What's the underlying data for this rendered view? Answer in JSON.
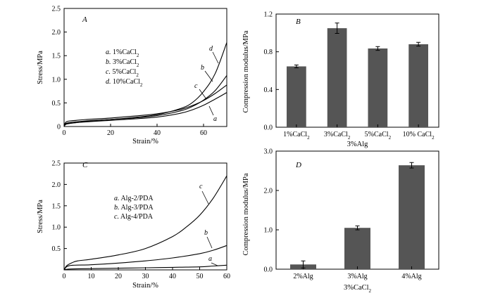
{
  "chart_data": [
    {
      "panel": "A",
      "type": "line",
      "xlabel": "Strain/%",
      "ylabel": "Stress/MPa",
      "xlim": [
        0,
        70
      ],
      "ylim": [
        0,
        2.5
      ],
      "xticks": [
        0,
        20,
        40,
        60
      ],
      "yticks": [
        0,
        0.5,
        1.0,
        1.5,
        2.0,
        2.5
      ],
      "ytick_labels": [
        "0",
        "0.5",
        "1.0",
        "1.5",
        "2.0",
        "2.5"
      ],
      "legend": [
        {
          "letter": "a.",
          "text": "1%CaCl",
          "sub": "2"
        },
        {
          "letter": "b.",
          "text": "3%CaCl",
          "sub": "2"
        },
        {
          "letter": "c.",
          "text": "5%CaCl",
          "sub": "2"
        },
        {
          "letter": "d.",
          "text": "10%CaCl",
          "sub": "2"
        }
      ],
      "series": [
        {
          "letter": "a",
          "x": [
            0,
            1,
            5,
            10,
            20,
            30,
            40,
            50,
            55,
            60,
            65,
            70
          ],
          "y": [
            0,
            0.06,
            0.08,
            0.1,
            0.13,
            0.16,
            0.2,
            0.28,
            0.35,
            0.45,
            0.58,
            0.72
          ]
        },
        {
          "letter": "b",
          "x": [
            0,
            1,
            5,
            10,
            20,
            30,
            40,
            50,
            55,
            60,
            65,
            70
          ],
          "y": [
            0,
            0.07,
            0.1,
            0.12,
            0.15,
            0.18,
            0.23,
            0.33,
            0.42,
            0.56,
            0.76,
            1.08
          ]
        },
        {
          "letter": "c",
          "x": [
            0,
            1,
            5,
            10,
            20,
            30,
            40,
            50,
            55,
            60,
            65,
            70
          ],
          "y": [
            0,
            0.1,
            0.13,
            0.15,
            0.18,
            0.22,
            0.27,
            0.36,
            0.44,
            0.55,
            0.7,
            0.88
          ]
        },
        {
          "letter": "d",
          "x": [
            0,
            1,
            5,
            10,
            20,
            30,
            40,
            50,
            55,
            60,
            65,
            70
          ],
          "y": [
            0,
            0.05,
            0.08,
            0.11,
            0.15,
            0.19,
            0.25,
            0.38,
            0.5,
            0.74,
            1.12,
            1.78
          ]
        }
      ]
    },
    {
      "panel": "B",
      "type": "bar",
      "xlabel": "3%Alg",
      "ylabel": "Compression modulus/MPa",
      "ylim": [
        0,
        1.2
      ],
      "yticks": [
        0,
        0.4,
        0.8,
        1.2
      ],
      "ytick_labels": [
        "0.0",
        "0.4",
        "0.8",
        "1.2"
      ],
      "categories": [
        {
          "text": "1%CaCl",
          "sub": "2"
        },
        {
          "text": "3%CaCl",
          "sub": "2"
        },
        {
          "text": "5%CaCl",
          "sub": "2"
        },
        {
          "text": "10% CaCl",
          "sub": "2"
        }
      ],
      "values": [
        0.645,
        1.05,
        0.835,
        0.88
      ],
      "errors": [
        0.015,
        0.055,
        0.02,
        0.02
      ],
      "bar_color": "#555555"
    },
    {
      "panel": "C",
      "type": "line",
      "xlabel": "Strain/%",
      "ylabel": "Stress/MPa",
      "xlim": [
        0,
        60
      ],
      "ylim": [
        0,
        2.5
      ],
      "xticks": [
        0,
        10,
        20,
        30,
        40,
        50,
        60
      ],
      "yticks": [
        0.5,
        1.0,
        1.5,
        2.0,
        2.5
      ],
      "ytick_labels": [
        "0.5",
        "1.0",
        "1.5",
        "2.0",
        "2.5"
      ],
      "legend": [
        {
          "letter": "a.",
          "text": "Alg-2/PDA"
        },
        {
          "letter": "b.",
          "text": "Alg-3/PDA"
        },
        {
          "letter": "c.",
          "text": "Alg-4/PDA"
        }
      ],
      "series": [
        {
          "letter": "a",
          "x": [
            0,
            2,
            10,
            20,
            30,
            40,
            50,
            55,
            60
          ],
          "y": [
            0,
            0.02,
            0.03,
            0.04,
            0.05,
            0.06,
            0.07,
            0.09,
            0.11
          ]
        },
        {
          "letter": "b",
          "x": [
            0,
            2,
            10,
            20,
            30,
            40,
            50,
            55,
            60
          ],
          "y": [
            0,
            0.1,
            0.12,
            0.16,
            0.21,
            0.28,
            0.38,
            0.46,
            0.57
          ]
        },
        {
          "letter": "c",
          "x": [
            0,
            1,
            3,
            5,
            10,
            20,
            30,
            40,
            45,
            50,
            55,
            60
          ],
          "y": [
            0,
            0.1,
            0.17,
            0.21,
            0.25,
            0.35,
            0.5,
            0.78,
            1.0,
            1.28,
            1.68,
            2.2
          ]
        }
      ]
    },
    {
      "panel": "D",
      "type": "bar",
      "xlabel": "3%CaCl",
      "xlabel_sub": "2",
      "ylabel": "Compression modulus/MPa",
      "ylim": [
        0,
        3.0
      ],
      "yticks": [
        0,
        1.0,
        2.0,
        3.0
      ],
      "ytick_labels": [
        "0.0",
        "1.0",
        "2.0",
        "3.0"
      ],
      "categories": [
        {
          "text": "2%Alg"
        },
        {
          "text": "3%Alg"
        },
        {
          "text": "4%Alg"
        }
      ],
      "values": [
        0.12,
        1.05,
        2.64
      ],
      "errors": [
        0.09,
        0.05,
        0.07
      ],
      "bar_color": "#555555"
    }
  ]
}
